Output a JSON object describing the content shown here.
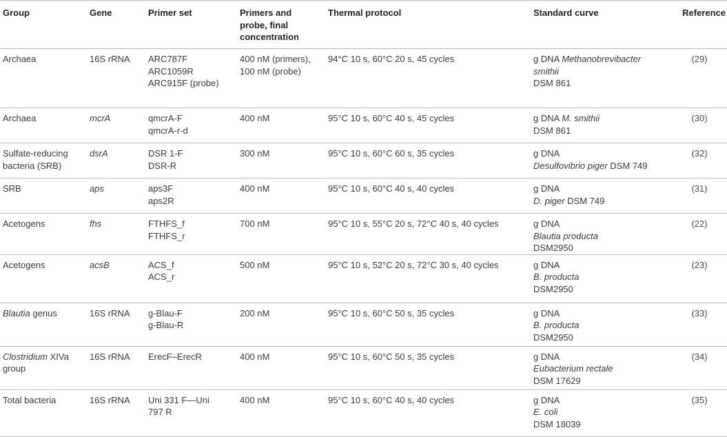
{
  "headers": {
    "group": "Group",
    "gene": "Gene",
    "primer_set": "Primer set",
    "primers_probe": [
      "Primers and",
      "probe, final",
      "concentration"
    ],
    "thermal": "Thermal protocol",
    "standard": "Standard curve",
    "reference": "Reference"
  },
  "rows": [
    {
      "group": [
        "Archaea"
      ],
      "gene": "16S rRNA",
      "primers": [
        "ARC787F",
        "ARC1059R",
        "ARC915F (probe)"
      ],
      "conc": [
        "400 nM (primers),",
        "100 nM (probe)"
      ],
      "thermal": "94°C 10 s, 60°C 20 s, 45 cycles",
      "std": [
        "g DNA ",
        "Methanobrevibacter",
        "smithii",
        "DSM 861"
      ],
      "ref": "(29)"
    },
    {
      "group": [
        "Archaea"
      ],
      "gene": "mcrA",
      "primers": [
        "qmcrA-F",
        "qmcrA-r-d"
      ],
      "conc": [
        "400 nM"
      ],
      "thermal": "95°C 10 s, 60°C 40 s, 45 cycles",
      "std": [
        "g DNA ",
        "M. smithii",
        "DSM 861"
      ],
      "ref": "(30)"
    },
    {
      "group": [
        "Sulfate-reducing",
        "bacteria (SRB)"
      ],
      "gene": "dsrA",
      "primers": [
        "DSR 1-F",
        "DSR-R"
      ],
      "conc": [
        "300 nM"
      ],
      "thermal": "95°C 10 s, 60°C 60 s, 35 cycles",
      "std": [
        "g DNA",
        "Desulfovibrio piger",
        " DSM 749"
      ],
      "ref": "(32)"
    },
    {
      "group": [
        "SRB"
      ],
      "gene": "aps",
      "primers": [
        "aps3F",
        "aps2R"
      ],
      "conc": [
        "400 nM"
      ],
      "thermal": "95°C 10 s, 60°C 40 s, 40 cycles",
      "std": [
        "g DNA",
        "D. piger",
        " DSM 749"
      ],
      "ref": "(31)"
    },
    {
      "group": [
        "Acetogens"
      ],
      "gene": "fhs",
      "primers": [
        "FTHFS_f",
        "FTHFS_r"
      ],
      "conc": [
        "700 nM"
      ],
      "thermal": "95°C 10 s, 55°C 20 s, 72°C 40 s, 40 cycles",
      "std": [
        "g DNA",
        "Blautia producta",
        "DSM2950"
      ],
      "ref": "(22)"
    },
    {
      "group": [
        "Acetogens"
      ],
      "gene": "acsB",
      "primers": [
        "ACS_f",
        "ACS_r"
      ],
      "conc": [
        "500 nM"
      ],
      "thermal": "95°C 10 s, 52°C 20 s, 72°C 30 s, 40 cycles",
      "std": [
        "g DNA",
        "B. producta",
        "DSM2950"
      ],
      "ref": "(23)"
    },
    {
      "group": [
        "Blautia",
        " genus"
      ],
      "gene": "16S rRNA",
      "primers": [
        "g-Blau-F",
        "g-Blau-R"
      ],
      "conc": [
        "200 nM"
      ],
      "thermal": "95°C 10 s, 60°C 50 s, 35 cycles",
      "std": [
        "g DNA",
        "B. producta",
        "DSM2950"
      ],
      "ref": "(33)"
    },
    {
      "group": [
        "Clostridium",
        " XIVa",
        "group"
      ],
      "gene": "16S rRNA",
      "primers": [
        "ErecF–ErecR"
      ],
      "conc": [
        "400 nM"
      ],
      "thermal": "95°C 10 s, 60°C 50 s, 35 cycles",
      "std": [
        "g DNA",
        "Eubacterium rectale",
        "DSM 17629"
      ],
      "ref": "(34)"
    },
    {
      "group": [
        "Total bacteria"
      ],
      "gene": "16S rRNA",
      "primers": [
        "Uni 331 F—Uni",
        "797 R"
      ],
      "conc": [
        "400 nM"
      ],
      "thermal": "95°C 10 s, 60°C 40 s, 40 cycles",
      "std": [
        "g DNA",
        "E. coli",
        "DSM 18039"
      ],
      "ref": "(35)"
    }
  ]
}
